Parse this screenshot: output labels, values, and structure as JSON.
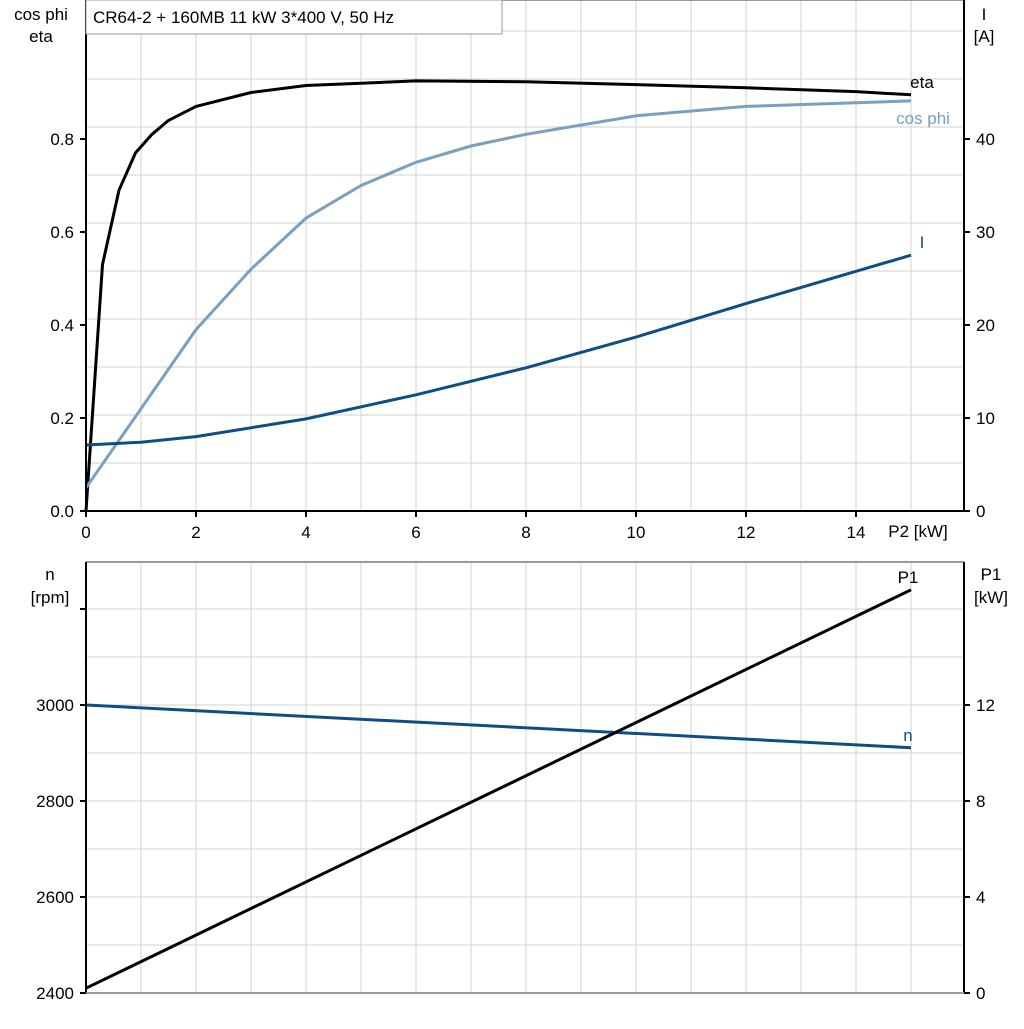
{
  "title": "CR64-2 + 160MB   11 kW   3*400 V, 50 Hz",
  "colors": {
    "eta": "#000000",
    "cos_phi": "#7a9fc0",
    "I": "#104d85",
    "n": "#104d85",
    "P1": "#000000",
    "grid": "#d0d0d0"
  },
  "chart_data": [
    {
      "type": "line",
      "xlabel": "P2 [kW]",
      "xlim": [
        0,
        16
      ],
      "xticks": [
        "0",
        "2",
        "4",
        "6",
        "8",
        "10",
        "12",
        "14"
      ],
      "ylabel_left": [
        "cos phi",
        "eta"
      ],
      "ylim_left": [
        0,
        1.05
      ],
      "yticks_left": [
        "0.0",
        "0.2",
        "0.4",
        "0.6",
        "0.8"
      ],
      "ylabel_right": [
        "I",
        "[A]"
      ],
      "ylim_right": [
        0,
        52.7
      ],
      "yticks_right": [
        "0",
        "10",
        "20",
        "30",
        "40"
      ],
      "grid": true,
      "series": [
        {
          "name": "eta",
          "axis": "left",
          "x": [
            0,
            0.3,
            0.6,
            0.9,
            1.2,
            1.5,
            2,
            3,
            4,
            6,
            8,
            10,
            12,
            14,
            15
          ],
          "y": [
            0,
            0.53,
            0.69,
            0.77,
            0.81,
            0.84,
            0.87,
            0.9,
            0.915,
            0.925,
            0.923,
            0.917,
            0.91,
            0.902,
            0.895
          ]
        },
        {
          "name": "cos phi",
          "axis": "left",
          "x": [
            0,
            1,
            2,
            3,
            4,
            5,
            6,
            7,
            8,
            10,
            12,
            15
          ],
          "y": [
            0.05,
            0.22,
            0.39,
            0.52,
            0.63,
            0.7,
            0.75,
            0.785,
            0.81,
            0.85,
            0.87,
            0.882
          ]
        },
        {
          "name": "I",
          "axis": "right",
          "x": [
            0,
            1,
            2,
            4,
            6,
            8,
            10,
            12,
            15
          ],
          "y": [
            7.1,
            7.4,
            8.0,
            9.9,
            12.5,
            15.4,
            18.7,
            22.3,
            27.5
          ]
        }
      ]
    },
    {
      "type": "line",
      "xlim": [
        0,
        16
      ],
      "ylabel_left": [
        "n",
        "[rpm]"
      ],
      "ylim_left": [
        2400,
        3300
      ],
      "yticks_left": [
        "2400",
        "2600",
        "2800",
        "3000"
      ],
      "ylabel_right": [
        "P1",
        "[kW]"
      ],
      "ylim_right": [
        0,
        18
      ],
      "yticks_right": [
        "0",
        "4",
        "8",
        "12"
      ],
      "grid": true,
      "series": [
        {
          "name": "n",
          "axis": "left",
          "x": [
            0,
            15
          ],
          "y": [
            3000,
            2911
          ]
        },
        {
          "name": "P1",
          "axis": "right",
          "x": [
            0,
            15
          ],
          "y": [
            0.2,
            16.8
          ]
        }
      ]
    }
  ]
}
